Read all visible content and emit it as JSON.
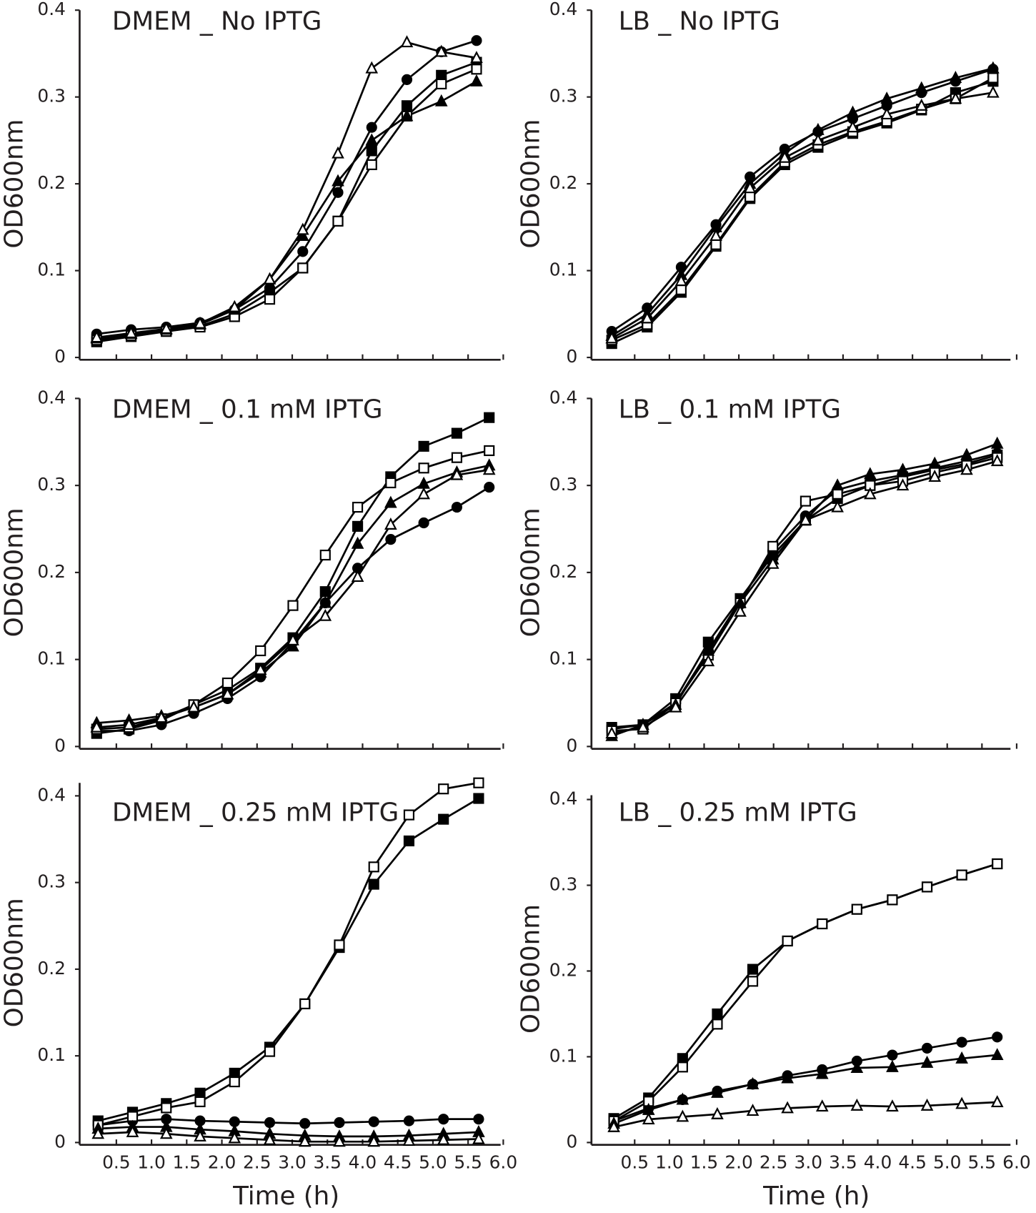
{
  "chart_data": [
    {
      "type": "line",
      "title": "DMEM _ No IPTG",
      "ylabel": "OD600nm",
      "x": [
        0.22,
        0.71,
        1.21,
        1.69,
        2.18,
        2.68,
        3.15,
        3.65,
        4.13,
        4.63,
        5.12,
        5.62
      ],
      "xlim": [
        0,
        6.05
      ],
      "ylim": [
        0,
        0.4
      ],
      "yticks": [
        0,
        0.1,
        0.2,
        0.3,
        0.4
      ],
      "xticks": [
        0.5,
        {
          "value": 1,
          "label": "1.0"
        },
        1.5,
        {
          "value": 2,
          "label": "2.0"
        },
        2.5,
        {
          "value": 3,
          "label": "3.0"
        },
        3.5,
        {
          "value": 4,
          "label": "4.0"
        },
        4.5,
        {
          "value": 5,
          "label": "5.0"
        },
        5.5,
        {
          "value": 6,
          "label": "6.0"
        }
      ],
      "xtick_labels": false,
      "series": [
        {
          "marker": "circle",
          "filled": true,
          "color": "#000000",
          "values": [
            0.027,
            0.032,
            0.035,
            0.04,
            0.055,
            0.08,
            0.122,
            0.19,
            0.265,
            0.32,
            0.352,
            0.365
          ]
        },
        {
          "marker": "square",
          "filled": true,
          "color": "#000000",
          "values": [
            0.018,
            0.024,
            0.03,
            0.036,
            0.05,
            0.075,
            0.103,
            0.157,
            0.238,
            0.29,
            0.325,
            0.34
          ]
        },
        {
          "marker": "square",
          "filled": false,
          "color": "#000000",
          "values": [
            0.02,
            0.025,
            0.03,
            0.035,
            0.047,
            0.067,
            0.103,
            0.157,
            0.222,
            0.278,
            0.315,
            0.332
          ]
        },
        {
          "marker": "triangle",
          "filled": true,
          "color": "#000000",
          "values": [
            0.022,
            0.027,
            0.032,
            0.038,
            0.055,
            0.09,
            0.14,
            0.203,
            0.25,
            0.278,
            0.295,
            0.318
          ]
        },
        {
          "marker": "triangle",
          "filled": false,
          "color": "#000000",
          "values": [
            0.023,
            0.028,
            0.033,
            0.039,
            0.058,
            0.09,
            0.147,
            0.235,
            0.333,
            0.363,
            0.352,
            0.345
          ]
        }
      ]
    },
    {
      "type": "line",
      "title": "LB _ No IPTG",
      "ylabel": "OD600nm",
      "x": [
        0.17,
        0.68,
        1.17,
        1.67,
        2.16,
        2.66,
        3.14,
        3.64,
        4.13,
        4.63,
        5.12,
        5.66
      ],
      "xlim": [
        -0.1,
        6.0
      ],
      "ylim": [
        0,
        0.4
      ],
      "yticks": [
        0,
        0.1,
        0.2,
        0.3,
        0.4
      ],
      "xticks": [
        0.5,
        {
          "value": 1,
          "label": "1.0"
        },
        1.5,
        {
          "value": 2,
          "label": "2.0"
        },
        2.5,
        {
          "value": 3,
          "label": "3.0"
        },
        3.5,
        {
          "value": 4,
          "label": "4.0"
        },
        4.5,
        {
          "value": 5,
          "label": "5.0"
        },
        5.5,
        {
          "value": 6,
          "label": "6.0"
        }
      ],
      "xtick_labels": false,
      "series": [
        {
          "marker": "circle",
          "filled": true,
          "color": "#000000",
          "values": [
            0.03,
            0.057,
            0.104,
            0.153,
            0.208,
            0.24,
            0.26,
            0.275,
            0.29,
            0.305,
            0.318,
            0.332
          ]
        },
        {
          "marker": "square",
          "filled": true,
          "color": "#000000",
          "values": [
            0.016,
            0.035,
            0.075,
            0.128,
            0.183,
            0.222,
            0.242,
            0.258,
            0.27,
            0.285,
            0.305,
            0.318
          ]
        },
        {
          "marker": "square",
          "filled": false,
          "color": "#000000",
          "values": [
            0.02,
            0.038,
            0.078,
            0.13,
            0.185,
            0.225,
            0.245,
            0.26,
            0.272,
            0.286,
            0.298,
            0.322
          ]
        },
        {
          "marker": "triangle",
          "filled": true,
          "color": "#000000",
          "values": [
            0.025,
            0.05,
            0.095,
            0.15,
            0.2,
            0.235,
            0.262,
            0.282,
            0.298,
            0.31,
            0.322,
            0.333
          ]
        },
        {
          "marker": "triangle",
          "filled": false,
          "color": "#000000",
          "values": [
            0.022,
            0.045,
            0.088,
            0.14,
            0.195,
            0.23,
            0.25,
            0.265,
            0.28,
            0.29,
            0.298,
            0.305
          ]
        }
      ]
    },
    {
      "type": "line",
      "title": "DMEM _ 0.1 mM IPTG",
      "ylabel": "OD600nm",
      "x": [
        0.22,
        0.68,
        1.14,
        1.6,
        2.08,
        2.55,
        3.01,
        3.47,
        3.93,
        4.4,
        4.87,
        5.34,
        5.8
      ],
      "xlim": [
        0,
        6.05
      ],
      "ylim": [
        0,
        0.4
      ],
      "yticks": [
        0,
        0.1,
        0.2,
        0.3,
        0.4
      ],
      "xticks": [
        0.5,
        {
          "value": 1,
          "label": "1.0"
        },
        1.5,
        {
          "value": 2,
          "label": "2.0"
        },
        2.5,
        {
          "value": 3,
          "label": "3.0"
        },
        3.5,
        {
          "value": 4,
          "label": "4.0"
        },
        4.5,
        {
          "value": 5,
          "label": "5.0"
        },
        5.5,
        {
          "value": 6,
          "label": "6.0"
        }
      ],
      "xtick_labels": false,
      "series": [
        {
          "marker": "circle",
          "filled": true,
          "color": "#000000",
          "values": [
            0.018,
            0.018,
            0.025,
            0.038,
            0.055,
            0.08,
            0.12,
            0.165,
            0.205,
            0.238,
            0.257,
            0.275,
            0.298
          ]
        },
        {
          "marker": "square",
          "filled": true,
          "color": "#000000",
          "values": [
            0.015,
            0.02,
            0.03,
            0.048,
            0.065,
            0.09,
            0.125,
            0.178,
            0.253,
            0.31,
            0.345,
            0.36,
            0.378
          ]
        },
        {
          "marker": "square",
          "filled": false,
          "color": "#000000",
          "values": [
            0.02,
            0.022,
            0.032,
            0.048,
            0.073,
            0.11,
            0.162,
            0.22,
            0.275,
            0.303,
            0.32,
            0.332,
            0.34
          ]
        },
        {
          "marker": "triangle",
          "filled": true,
          "color": "#000000",
          "values": [
            0.027,
            0.03,
            0.035,
            0.045,
            0.06,
            0.085,
            0.115,
            0.165,
            0.233,
            0.28,
            0.302,
            0.315,
            0.323
          ]
        },
        {
          "marker": "triangle",
          "filled": false,
          "color": "#000000",
          "values": [
            0.022,
            0.025,
            0.033,
            0.045,
            0.06,
            0.088,
            0.122,
            0.15,
            0.195,
            0.255,
            0.29,
            0.312,
            0.318
          ]
        }
      ]
    },
    {
      "type": "line",
      "title": "LB _ 0.1 mM IPTG",
      "ylabel": "OD600nm",
      "x": [
        0.17,
        0.62,
        1.09,
        1.56,
        2.02,
        2.49,
        2.96,
        3.42,
        3.89,
        4.36,
        4.82,
        5.28,
        5.72
      ],
      "xlim": [
        -0.1,
        6.0
      ],
      "ylim": [
        0,
        0.4
      ],
      "yticks": [
        0,
        0.1,
        0.2,
        0.3,
        0.4
      ],
      "xticks": [
        0.5,
        {
          "value": 1,
          "label": "1.0"
        },
        1.5,
        {
          "value": 2,
          "label": "2.0"
        },
        2.5,
        {
          "value": 3,
          "label": "3.0"
        },
        3.5,
        {
          "value": 4,
          "label": "4.0"
        },
        4.5,
        {
          "value": 5,
          "label": "5.0"
        },
        5.5,
        {
          "value": 6,
          "label": "6.0"
        }
      ],
      "xtick_labels": false,
      "series": [
        {
          "marker": "circle",
          "filled": true,
          "color": "#000000",
          "values": [
            0.02,
            0.025,
            0.05,
            0.11,
            0.168,
            0.225,
            0.265,
            0.295,
            0.305,
            0.312,
            0.32,
            0.328,
            0.337
          ]
        },
        {
          "marker": "square",
          "filled": true,
          "color": "#000000",
          "values": [
            0.022,
            0.025,
            0.055,
            0.12,
            0.17,
            0.22,
            0.26,
            0.285,
            0.3,
            0.31,
            0.318,
            0.325,
            0.335
          ]
        },
        {
          "marker": "square",
          "filled": false,
          "color": "#000000",
          "values": [
            0.018,
            0.02,
            0.05,
            0.105,
            0.165,
            0.23,
            0.282,
            0.29,
            0.3,
            0.305,
            0.315,
            0.323,
            0.332
          ]
        },
        {
          "marker": "triangle",
          "filled": true,
          "color": "#000000",
          "values": [
            0.012,
            0.025,
            0.048,
            0.11,
            0.165,
            0.215,
            0.26,
            0.3,
            0.313,
            0.318,
            0.325,
            0.335,
            0.348
          ]
        },
        {
          "marker": "triangle",
          "filled": false,
          "color": "#000000",
          "values": [
            0.015,
            0.022,
            0.045,
            0.098,
            0.155,
            0.21,
            0.26,
            0.275,
            0.29,
            0.3,
            0.31,
            0.318,
            0.328
          ]
        }
      ]
    },
    {
      "type": "line",
      "title": "DMEM _ 0.25 mM IPTG",
      "ylabel": "OD600nm",
      "xlabel": "Time (h)",
      "x": [
        0.24,
        0.73,
        1.21,
        1.69,
        2.18,
        2.68,
        3.18,
        3.67,
        4.16,
        4.66,
        5.15,
        5.65
      ],
      "xlim": [
        0,
        6.05
      ],
      "ylim": [
        0,
        0.415
      ],
      "yticks": [
        0,
        0.1,
        0.2,
        0.3,
        0.4
      ],
      "xticks": [
        0.5,
        {
          "value": 1,
          "label": "1.0"
        },
        1.5,
        {
          "value": 2,
          "label": "2.0"
        },
        2.5,
        {
          "value": 3,
          "label": "3.0"
        },
        3.5,
        {
          "value": 4,
          "label": "4.0"
        },
        4.5,
        {
          "value": 5,
          "label": "5.0"
        },
        5.5,
        {
          "value": 6,
          "label": "6.0"
        }
      ],
      "xtick_labels": true,
      "series": [
        {
          "marker": "circle",
          "filled": true,
          "color": "#000000",
          "values": [
            0.02,
            0.025,
            0.027,
            0.025,
            0.024,
            0.023,
            0.022,
            0.023,
            0.024,
            0.025,
            0.027,
            0.027
          ]
        },
        {
          "marker": "square",
          "filled": true,
          "color": "#000000",
          "values": [
            0.025,
            0.035,
            0.045,
            0.057,
            0.08,
            0.11,
            0.16,
            0.225,
            0.298,
            0.348,
            0.373,
            0.397
          ]
        },
        {
          "marker": "square",
          "filled": false,
          "color": "#000000",
          "values": [
            0.02,
            0.03,
            0.04,
            0.047,
            0.07,
            0.105,
            0.16,
            0.228,
            0.318,
            0.378,
            0.408,
            0.415
          ]
        },
        {
          "marker": "triangle",
          "filled": true,
          "color": "#000000",
          "values": [
            0.016,
            0.018,
            0.018,
            0.015,
            0.013,
            0.01,
            0.008,
            0.007,
            0.007,
            0.008,
            0.01,
            0.012
          ]
        },
        {
          "marker": "triangle",
          "filled": false,
          "color": "#000000",
          "values": [
            0.01,
            0.012,
            0.01,
            0.007,
            0.005,
            0.003,
            0.001,
            0.001,
            0.001,
            0.002,
            0.003,
            0.004
          ]
        }
      ]
    },
    {
      "type": "line",
      "title": "LB _ 0.25 mM IPTG",
      "ylabel": "OD600nm",
      "xlabel": "Time (h)",
      "x": [
        0.2,
        0.7,
        1.19,
        1.69,
        2.2,
        2.7,
        3.2,
        3.7,
        4.21,
        4.71,
        5.21,
        5.72
      ],
      "xlim": [
        -0.1,
        6.0
      ],
      "ylim": [
        0,
        0.405
      ],
      "yticks": [
        0,
        0.1,
        0.2,
        0.3,
        0.4
      ],
      "xticks": [
        0.5,
        {
          "value": 1,
          "label": "1.0"
        },
        1.5,
        {
          "value": 2,
          "label": "2.0"
        },
        2.5,
        {
          "value": 3,
          "label": "3.0"
        },
        3.5,
        {
          "value": 4,
          "label": "4.0"
        },
        4.5,
        {
          "value": 5,
          "label": "5.0"
        },
        5.5,
        {
          "value": 6,
          "label": "6.0"
        }
      ],
      "xtick_labels": true,
      "series": [
        {
          "marker": "circle",
          "filled": true,
          "color": "#000000",
          "values": [
            0.025,
            0.04,
            0.05,
            0.06,
            0.068,
            0.078,
            0.085,
            0.095,
            0.102,
            0.11,
            0.117,
            0.123
          ]
        },
        {
          "marker": "square",
          "filled": true,
          "color": "#000000",
          "values": [
            0.028,
            0.052,
            0.098,
            0.15,
            0.202,
            0.235,
            0.255,
            0.272,
            0.283,
            0.298,
            0.312,
            0.325
          ]
        },
        {
          "marker": "square",
          "filled": false,
          "color": "#000000",
          "values": [
            0.025,
            0.048,
            0.088,
            0.138,
            0.188,
            0.235,
            0.255,
            0.272,
            0.283,
            0.298,
            0.312,
            0.325
          ]
        },
        {
          "marker": "triangle",
          "filled": true,
          "color": "#000000",
          "values": [
            0.022,
            0.038,
            0.05,
            0.058,
            0.068,
            0.075,
            0.08,
            0.087,
            0.088,
            0.093,
            0.098,
            0.102
          ]
        },
        {
          "marker": "triangle",
          "filled": false,
          "color": "#000000",
          "values": [
            0.018,
            0.027,
            0.03,
            0.033,
            0.037,
            0.04,
            0.042,
            0.043,
            0.042,
            0.043,
            0.045,
            0.047
          ]
        }
      ]
    }
  ]
}
